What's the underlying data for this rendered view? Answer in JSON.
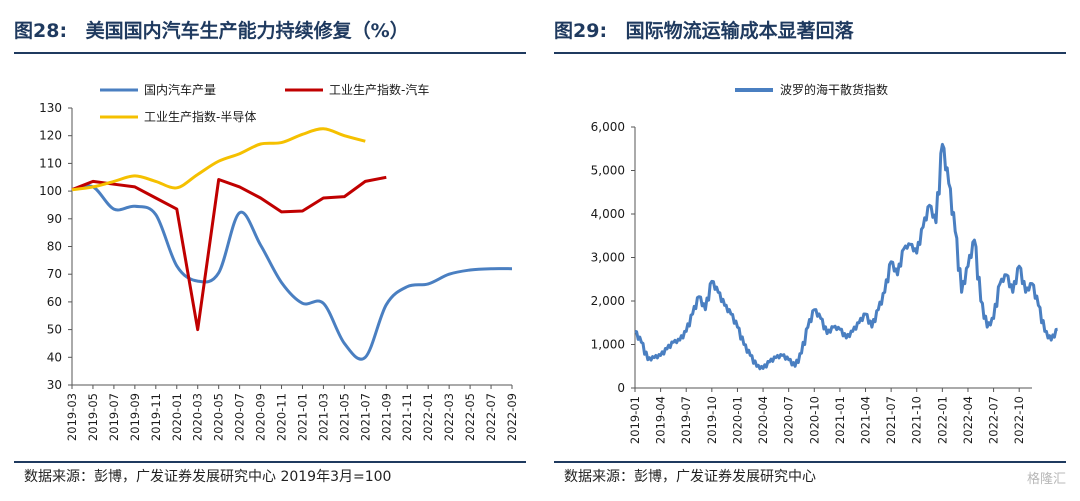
{
  "left": {
    "fig_label": "图28:",
    "title": "美国国内汽车生产能力持续修复（%）",
    "source": "数据来源：彭博，广发证券发展研究中心 2019年3月=100"
  },
  "right": {
    "fig_label": "图29:",
    "title": "国际物流运输成本显著回落",
    "source": "数据来源：彭博，广发证券发展研究中心"
  },
  "watermark": "格隆汇",
  "chart_data": [
    {
      "type": "line",
      "ylim": [
        30,
        130
      ],
      "yticks": [
        30,
        40,
        50,
        60,
        70,
        80,
        90,
        100,
        110,
        120,
        130
      ],
      "grid": false,
      "legend_position": "top",
      "categories": [
        "2019-03",
        "2019-05",
        "2019-07",
        "2019-09",
        "2019-11",
        "2020-01",
        "2020-03",
        "2020-05",
        "2020-07",
        "2020-09",
        "2020-11",
        "2021-01",
        "2021-03",
        "2021-05",
        "2021-07",
        "2021-09",
        "2021-11",
        "2022-01",
        "2022-03",
        "2022-05",
        "2022-07",
        "2022-09"
      ],
      "series": [
        {
          "name": "国内汽车产量",
          "color": "#4a7fc1",
          "values": [
            100.5,
            101.5,
            93.5,
            94.5,
            91.5,
            73,
            67.5,
            70.5,
            92.2,
            80.5,
            67,
            59.5,
            59.5,
            45,
            40,
            59,
            65.5,
            66.5,
            70,
            71.5,
            72,
            72
          ]
        },
        {
          "name": "工业生产指数-汽车",
          "color": "#c00000",
          "values": [
            100.5,
            103.5,
            102.5,
            101.5,
            97.5,
            93.5,
            50,
            104.2,
            101.5,
            97.5,
            92.5,
            92.8,
            97.5,
            98,
            103.5,
            105,
            null,
            null,
            null,
            null,
            null,
            null
          ]
        },
        {
          "name": "工业生产指数-半导体",
          "color": "#f5c000",
          "values": [
            100.5,
            101.5,
            103.5,
            105.5,
            103.5,
            101.2,
            106,
            110.8,
            113.5,
            117,
            117.5,
            120.5,
            122.5,
            120,
            118,
            null,
            null,
            null,
            null,
            null,
            null,
            null
          ]
        }
      ]
    },
    {
      "type": "line",
      "ylim": [
        0,
        6000
      ],
      "yticks": [
        0,
        1000,
        2000,
        3000,
        4000,
        5000,
        6000
      ],
      "ytick_labels": [
        "0",
        "1,000",
        "2,000",
        "3,000",
        "4,000",
        "5,000",
        "6,000"
      ],
      "grid": false,
      "legend_position": "top",
      "categories": [
        "2019-01",
        "2019-04",
        "2019-07",
        "2019-10",
        "2020-01",
        "2020-04",
        "2020-07",
        "2020-10",
        "2021-01",
        "2021-04",
        "2021-07",
        "2021-10",
        "2022-01",
        "2022-04",
        "2022-07",
        "2022-10"
      ],
      "series": [
        {
          "name": "波罗的海干散货指数",
          "color": "#4a7fc1",
          "x": [
            0,
            0.25,
            0.5,
            0.75,
            1,
            1.25,
            1.5,
            1.75,
            2,
            2.25,
            2.5,
            2.75,
            3,
            3.25,
            3.5,
            3.75,
            4,
            4.25,
            4.5,
            4.75,
            5,
            5.25,
            5.5,
            5.75,
            6,
            6.25,
            6.5,
            6.75,
            7,
            7.25,
            7.5,
            7.75,
            8,
            8.25,
            8.5,
            8.75,
            9,
            9.25,
            9.5,
            9.75,
            10,
            10.25,
            10.5,
            10.75,
            11,
            11.25,
            11.5,
            11.75,
            12,
            12.25,
            12.5,
            12.75,
            13,
            13.25,
            13.5,
            13.75,
            14,
            14.25,
            14.5,
            14.75,
            15,
            15.25,
            15.5,
            15.75,
            16,
            16.25,
            16.5
          ],
          "values": [
            1300,
            1050,
            650,
            700,
            750,
            900,
            1050,
            1100,
            1300,
            1700,
            2100,
            1800,
            2450,
            2200,
            1900,
            1700,
            1400,
            1000,
            750,
            500,
            450,
            600,
            700,
            750,
            650,
            500,
            800,
            1400,
            1800,
            1600,
            1250,
            1400,
            1350,
            1150,
            1300,
            1500,
            1700,
            1400,
            1800,
            2200,
            2900,
            2600,
            3200,
            3300,
            3100,
            3700,
            4200,
            3800,
            5600,
            4700,
            3600,
            2200,
            2800,
            3400,
            2000,
            1400,
            1600,
            2400,
            2600,
            2200,
            2800,
            2200,
            2400,
            1900,
            1300,
            1100,
            1350
          ]
        }
      ]
    }
  ]
}
